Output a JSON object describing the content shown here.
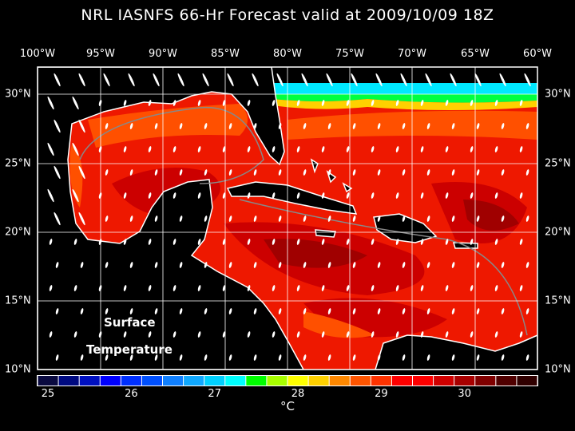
{
  "title": "NRL IASNFS  66-Hr Forecast valid at 2009/10/09 18Z",
  "lon_labels": [
    "100°W",
    "95°W",
    "90°W",
    "85°W",
    "80°W",
    "75°W",
    "70°W",
    "65°W",
    "60°W"
  ],
  "lat_labels": [
    "30°N",
    "25°N",
    "20°N",
    "15°N",
    "10°N"
  ],
  "annotation": {
    "line1": "Surface",
    "line2": "Temperature"
  },
  "colorbar": {
    "labels": [
      "25",
      "26",
      "27",
      "28",
      "29",
      "30"
    ],
    "unit": "°C",
    "colors": [
      "#0a0a40",
      "#000a80",
      "#0010c0",
      "#0000ff",
      "#0030ff",
      "#0050ff",
      "#1080ff",
      "#10a8ff",
      "#00d0ff",
      "#00ffff",
      "#00ff00",
      "#a8ff00",
      "#ffff00",
      "#ffd000",
      "#ff8800",
      "#ff5500",
      "#ff3300",
      "#ff0000",
      "#ff0000",
      "#d00000",
      "#a80000",
      "#800000",
      "#500000",
      "#300000"
    ]
  }
}
